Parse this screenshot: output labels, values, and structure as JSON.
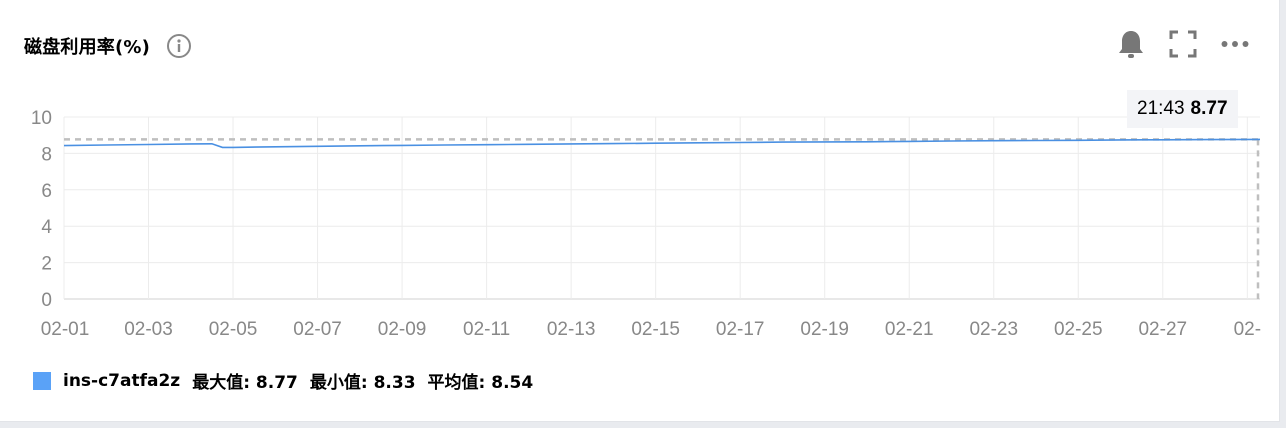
{
  "header": {
    "title": "磁盘利用率(%)"
  },
  "icons": {
    "info": "info-circle-icon",
    "alarm": "bell-icon",
    "fullscreen": "fullscreen-icon",
    "more": "more-horizontal-icon"
  },
  "tooltip": {
    "time": "21:43",
    "value": "8.77"
  },
  "legend": {
    "series_name": "ins-c7atfa2z",
    "max_text": "最大值: 8.77",
    "min_text": "最小值: 8.33",
    "avg_text": "平均值: 8.54"
  },
  "colors": {
    "series": "#4a90e2",
    "swatch": "#5aa2f7",
    "grid": "#ececec",
    "reference_line": "#bfbfbf"
  },
  "chart_data": {
    "type": "line",
    "y_ticks": [
      0,
      2,
      4,
      6,
      8,
      10
    ],
    "ylim": [
      0,
      10
    ],
    "x_ticks": [
      "02-01",
      "02-03",
      "02-05",
      "02-07",
      "02-09",
      "02-11",
      "02-13",
      "02-15",
      "02-17",
      "02-19",
      "02-21",
      "02-23",
      "02-25",
      "02-27",
      "02-"
    ],
    "x_range_days": [
      0,
      28.3
    ],
    "reference_value": 8.77,
    "grid": true,
    "series": [
      {
        "name": "ins-c7atfa2z",
        "points": [
          [
            0.0,
            8.43
          ],
          [
            1.0,
            8.46
          ],
          [
            2.0,
            8.49
          ],
          [
            3.0,
            8.52
          ],
          [
            3.5,
            8.53
          ],
          [
            3.75,
            8.33
          ],
          [
            4.0,
            8.33
          ],
          [
            5.0,
            8.36
          ],
          [
            6.0,
            8.39
          ],
          [
            7.0,
            8.42
          ],
          [
            8.0,
            8.44
          ],
          [
            9.0,
            8.46
          ],
          [
            10.0,
            8.48
          ],
          [
            11.0,
            8.5
          ],
          [
            12.0,
            8.52
          ],
          [
            13.0,
            8.54
          ],
          [
            14.0,
            8.56
          ],
          [
            15.0,
            8.58
          ],
          [
            16.0,
            8.6
          ],
          [
            17.0,
            8.62
          ],
          [
            18.0,
            8.63
          ],
          [
            19.0,
            8.64
          ],
          [
            20.0,
            8.66
          ],
          [
            21.0,
            8.68
          ],
          [
            22.0,
            8.7
          ],
          [
            23.0,
            8.71
          ],
          [
            24.0,
            8.72
          ],
          [
            25.0,
            8.74
          ],
          [
            26.0,
            8.75
          ],
          [
            27.0,
            8.76
          ],
          [
            28.3,
            8.77
          ]
        ]
      }
    ]
  }
}
